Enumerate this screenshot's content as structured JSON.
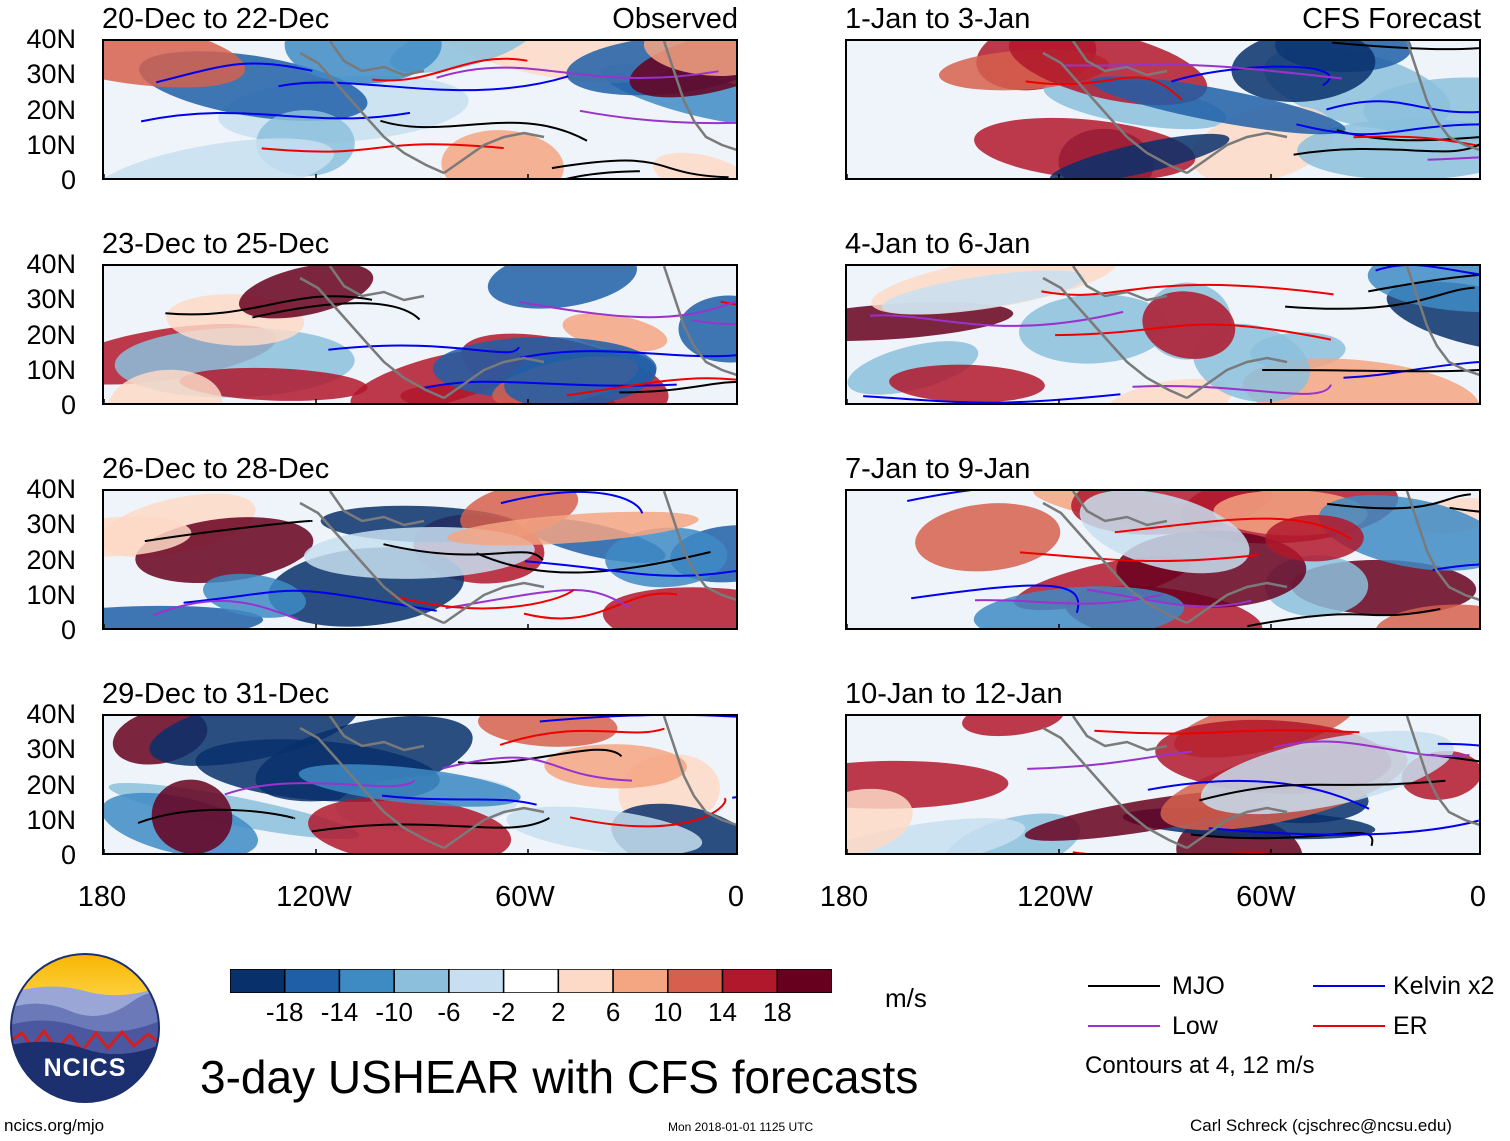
{
  "colors": {
    "mjo": "#000000",
    "low": "#9a32cd",
    "kelvin": "#0000ee",
    "er": "#ee0000",
    "land": "#7a7a7a",
    "palette": [
      "#08306b",
      "#1f5fa8",
      "#3e8bc4",
      "#8bbfdc",
      "#c7dff0",
      "#ffffff",
      "#fdd9c7",
      "#f4a582",
      "#d6604d",
      "#b2182b",
      "#67001f"
    ]
  },
  "panel_types": {
    "observed": "Observed",
    "forecast": "CFS Forecast"
  },
  "panels": [
    {
      "title": "20-Dec to 22-Dec",
      "tag": "Observed",
      "seed": 3
    },
    {
      "title": "1-Jan to 3-Jan",
      "tag": "CFS Forecast",
      "seed": 11
    },
    {
      "title": "23-Dec to 25-Dec",
      "tag": "",
      "seed": 5
    },
    {
      "title": "4-Jan to 6-Jan",
      "tag": "",
      "seed": 17
    },
    {
      "title": "26-Dec to 28-Dec",
      "tag": "",
      "seed": 7
    },
    {
      "title": "7-Jan to 9-Jan",
      "tag": "",
      "seed": 23
    },
    {
      "title": "29-Dec to 31-Dec",
      "tag": "",
      "seed": 13
    },
    {
      "title": "10-Jan to 12-Jan",
      "tag": "",
      "seed": 29
    }
  ],
  "y_labels": [
    "40N",
    "30N",
    "20N",
    "10N",
    "0"
  ],
  "x_labels": [
    "180",
    "120W",
    "60W",
    "0"
  ],
  "colorbar": {
    "ticks": [
      "-18",
      "-14",
      "-10",
      "-6",
      "-2",
      "2",
      "6",
      "10",
      "14",
      "18"
    ],
    "units": "m/s"
  },
  "legend": {
    "mjo": "MJO",
    "kelvin": "Kelvin x2",
    "low": "Low",
    "er": "ER",
    "contours_note": "Contours at 4, 12 m/s"
  },
  "logo_text": "NCICS",
  "main_title": "3-day USHEAR with CFS forecasts",
  "footer": {
    "left": "ncics.org/mjo",
    "center": "Mon 2018-01-01 1125 UTC",
    "right": "Carl Schreck (cjschrec@ncsu.edu)"
  }
}
